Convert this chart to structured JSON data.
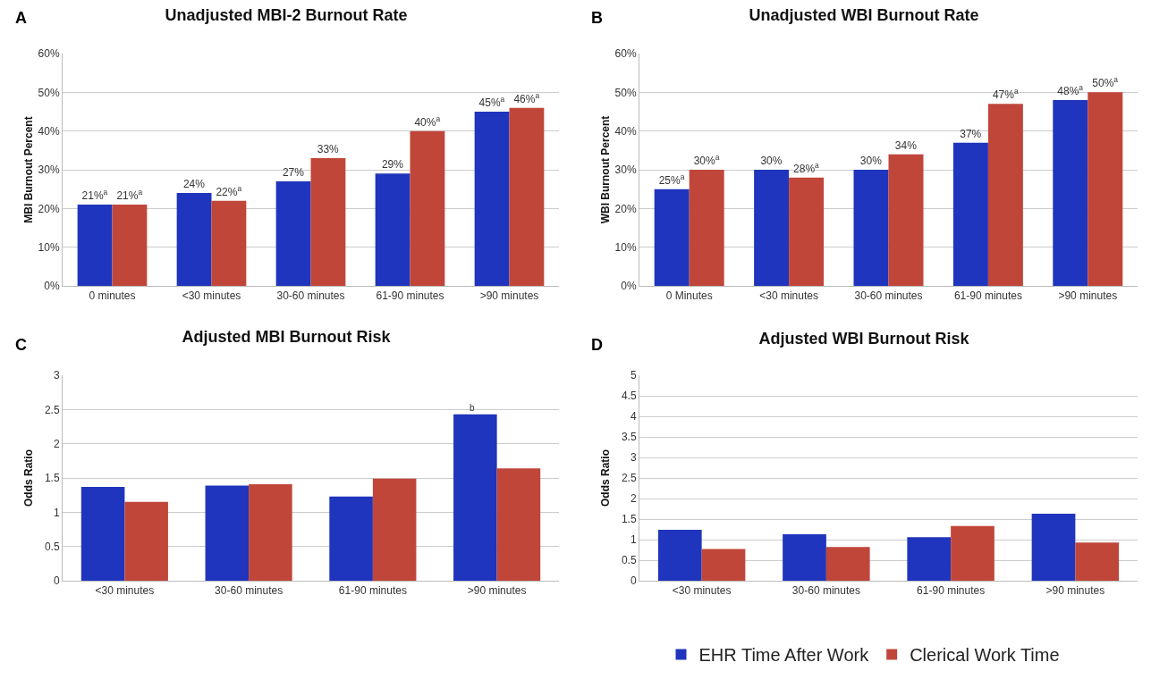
{
  "chart_data": [
    {
      "type": "bar",
      "title": "Unadjusted MBI-2 Burnout Rate",
      "ylabel": "MBI Burnout Percent",
      "annotations": [
        "A"
      ],
      "categories": [
        "0 minutes",
        "<30 minutes",
        "30-60 minutes",
        "61-90 minutes",
        ">90 minutes"
      ],
      "ylim": [
        0,
        60
      ],
      "yticks": [
        {
          "value": 0,
          "label": "0%"
        },
        {
          "value": 10,
          "label": "10%"
        },
        {
          "value": 20,
          "label": "20%"
        },
        {
          "value": 30,
          "label": "30%"
        },
        {
          "value": 40,
          "label": "40%"
        },
        {
          "value": 50,
          "label": "50%"
        },
        {
          "value": 60,
          "label": "60%"
        }
      ],
      "grid": "y",
      "legend": false,
      "series": [
        {
          "color": "#1f35bd",
          "values": [
            21,
            24,
            27,
            29,
            45
          ],
          "value_labels": [
            "21%$^{a}$",
            "24%",
            "27%",
            "29%",
            "45%$^{a}$"
          ]
        },
        {
          "color": "#c0463a",
          "values": [
            21,
            22,
            33,
            40,
            46
          ],
          "value_labels": [
            "21%$^{a}$",
            "22%$^{a}$",
            "33%",
            "40%$^{a}$",
            "46%$^{a}$"
          ]
        }
      ]
    },
    {
      "type": "bar",
      "title": "Unadjusted WBI Burnout Rate",
      "ylabel": "WBI Burnout Percent",
      "annotations": [
        "B"
      ],
      "categories": [
        "0 Minutes",
        "<30 minutes",
        "30-60 minutes",
        "61-90 minutes",
        ">90 minutes"
      ],
      "ylim": [
        0,
        60
      ],
      "yticks": [
        {
          "value": 0,
          "label": "0%"
        },
        {
          "value": 10,
          "label": "10%"
        },
        {
          "value": 20,
          "label": "20%"
        },
        {
          "value": 30,
          "label": "30%"
        },
        {
          "value": 40,
          "label": "40%"
        },
        {
          "value": 50,
          "label": "50%"
        },
        {
          "value": 60,
          "label": "60%"
        }
      ],
      "grid": "y",
      "legend": false,
      "series": [
        {
          "color": "#1f35bd",
          "values": [
            25,
            30,
            30,
            37,
            48
          ],
          "value_labels": [
            "25%$^{a}$",
            "30%",
            "30%",
            "37%",
            "48%$^{a}$"
          ]
        },
        {
          "color": "#c0463a",
          "values": [
            30,
            28,
            34,
            47,
            50
          ],
          "value_labels": [
            "30%$^{a}$",
            "28%$^{a}$",
            "34%",
            "47%$^{a}$",
            "50%$^{a}$"
          ]
        }
      ]
    },
    {
      "type": "bar",
      "title": "Adjusted MBI Burnout Risk",
      "ylabel": "Odds Ratio",
      "annotations": [
        "C",
        {
          "text": "b",
          "x": ">90 minutes",
          "y": 2.43
        }
      ],
      "categories": [
        "<30 minutes",
        "30-60 minutes",
        "61-90 minutes",
        ">90 minutes"
      ],
      "ylim": [
        0,
        3
      ],
      "yticks": [
        0,
        0.5,
        1,
        1.5,
        2,
        2.5,
        3
      ],
      "grid": "y",
      "legend": false,
      "series": [
        {
          "color": "#1f35bd",
          "values": [
            1.37,
            1.39,
            1.23,
            2.43
          ]
        },
        {
          "color": "#c0463a",
          "values": [
            1.15,
            1.41,
            1.49,
            1.64
          ]
        }
      ]
    },
    {
      "type": "bar",
      "title": "Adjusted WBI Burnout Risk",
      "ylabel": "Odds Ratio",
      "annotations": [
        "D"
      ],
      "categories": [
        "<30 minutes",
        "30-60 minutes",
        "61-90 minutes",
        ">90 minutes"
      ],
      "ylim": [
        0,
        5
      ],
      "yticks": [
        0,
        0.5,
        1,
        1.5,
        2,
        2.5,
        3,
        3.5,
        4,
        4.5,
        5
      ],
      "grid": "y",
      "legend": "bottom",
      "series": [
        {
          "name": "EHR Time After Work",
          "color": "#1f35bd",
          "values": [
            1.24,
            1.13,
            1.06,
            1.63
          ]
        },
        {
          "name": "Clerical Work Time",
          "color": "#c0463a",
          "values": [
            0.77,
            0.82,
            1.33,
            0.93
          ]
        }
      ]
    }
  ]
}
